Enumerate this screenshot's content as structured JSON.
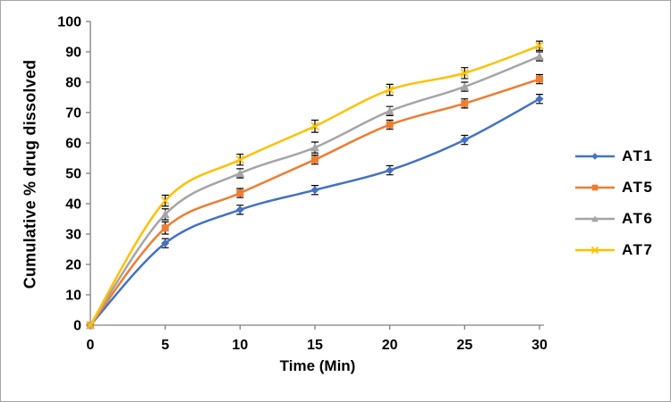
{
  "figure": {
    "background": "#ffffff",
    "border_color": "#a6a6a6"
  },
  "chart_data": {
    "type": "line",
    "title": "",
    "xlabel": "Time (Min)",
    "ylabel": "Cumulative % drug dissolved",
    "x": [
      0,
      5,
      10,
      15,
      20,
      25,
      30
    ],
    "xlim": [
      0,
      30
    ],
    "ylim": [
      0,
      100
    ],
    "x_ticks": [
      0,
      5,
      10,
      15,
      20,
      25,
      30
    ],
    "y_ticks": [
      0,
      10,
      20,
      30,
      40,
      50,
      60,
      70,
      80,
      90,
      100
    ],
    "grid": false,
    "smoothed_lines": true,
    "legend_position": "right",
    "axis_color": "#808080",
    "error_bar_color": "#000000",
    "series": [
      {
        "name": "AT1",
        "color": "#4472C4",
        "marker": "diamond",
        "values": [
          0,
          27,
          38,
          44.5,
          51,
          61,
          74.5
        ],
        "errors": [
          0,
          1.5,
          1.5,
          1.5,
          1.5,
          1.5,
          1.5
        ]
      },
      {
        "name": "AT5",
        "color": "#ED7D31",
        "marker": "square",
        "values": [
          0,
          32,
          43.5,
          54.5,
          66,
          73,
          81
        ],
        "errors": [
          0,
          2,
          1.5,
          1.5,
          1.5,
          1.5,
          1.5
        ]
      },
      {
        "name": "AT6",
        "color": "#A5A5A5",
        "marker": "triangle",
        "values": [
          0,
          36.5,
          50,
          58.5,
          70.5,
          78.5,
          88.5
        ],
        "errors": [
          0,
          1.8,
          1.5,
          1.8,
          1.5,
          1.5,
          1.5
        ]
      },
      {
        "name": "AT7",
        "color": "#FFC000",
        "marker": "x",
        "values": [
          0,
          41,
          54.5,
          65.5,
          77.5,
          83,
          92
        ],
        "errors": [
          0,
          1.8,
          1.8,
          2,
          1.8,
          1.8,
          1.5
        ]
      }
    ]
  }
}
